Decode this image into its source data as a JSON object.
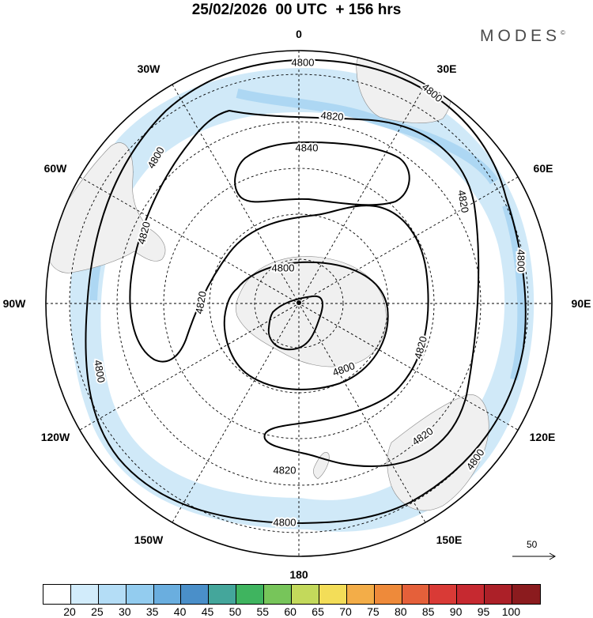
{
  "title": "25/02/2026  00 UTC  + 156 hrs",
  "brand": "MODES",
  "brand_mark": "©",
  "longitude_labels": [
    "0",
    "30E",
    "60E",
    "90E",
    "120E",
    "150E",
    "180",
    "150W",
    "120W",
    "90W",
    "60W",
    "30W"
  ],
  "contour_labels": [
    "4800",
    "4800",
    "4820",
    "4840",
    "4820",
    "4820",
    "4820",
    "4800",
    "4800",
    "4820",
    "4800",
    "4800",
    "4820",
    "4800",
    "4800",
    "4800",
    "4820"
  ],
  "vector_reference": "50",
  "colorbar": {
    "colors": [
      "#ffffff",
      "#d2ecfb",
      "#b4ddf6",
      "#93ccef",
      "#6aaedf",
      "#4a8fc9",
      "#44a69b",
      "#3fb45f",
      "#77c55a",
      "#c3d95b",
      "#f3dd58",
      "#f3ad48",
      "#ee8a3a",
      "#e5603a",
      "#d93a36",
      "#c62930",
      "#ac2028",
      "#8b1b1e"
    ],
    "labels": [
      "20",
      "25",
      "30",
      "35",
      "40",
      "45",
      "50",
      "55",
      "60",
      "65",
      "70",
      "75",
      "80",
      "85",
      "90",
      "95",
      "100"
    ]
  },
  "colors": {
    "jet": "#cde8f8",
    "jet_core": "#a8d5f2",
    "land": "#f0f0f0",
    "contour": "#000000"
  }
}
